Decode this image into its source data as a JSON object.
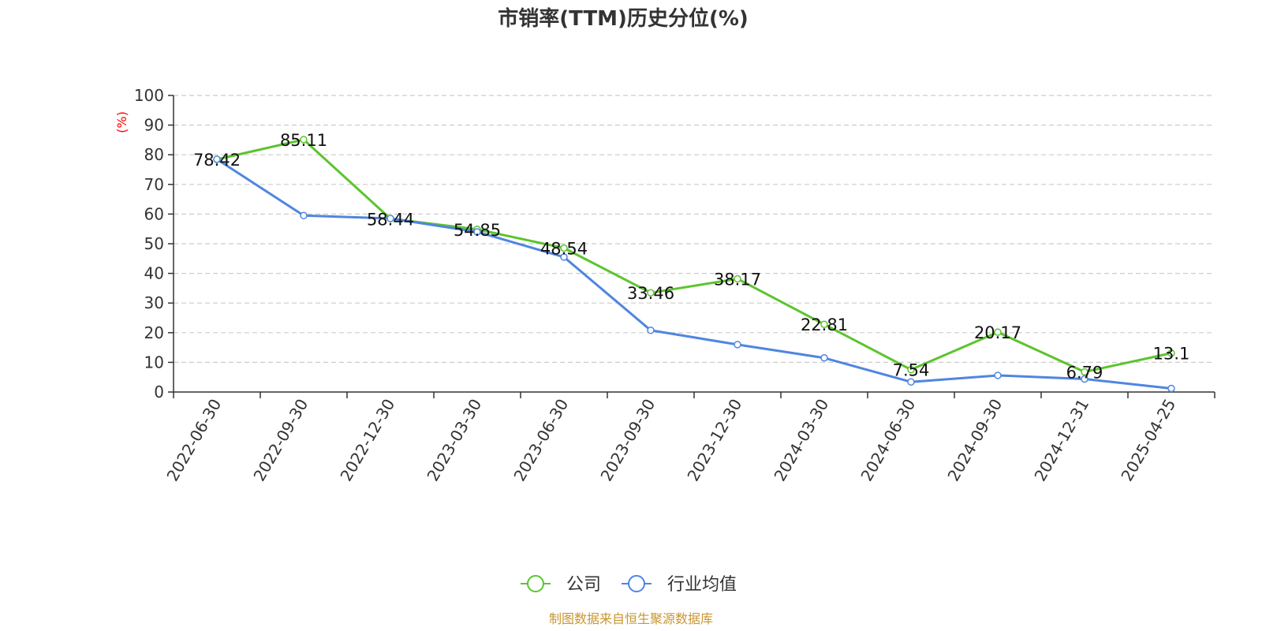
{
  "chart_data": {
    "type": "line",
    "title": "市销率(TTM)历史分位(%)",
    "ylabel": "(%)",
    "xlabel": "",
    "ylim": [
      0,
      100
    ],
    "yticks": [
      0,
      10,
      20,
      30,
      40,
      50,
      60,
      70,
      80,
      90,
      100
    ],
    "grid": "horizontal dashed",
    "legend_position": "bottom-center",
    "categories": [
      "2022-06-30",
      "2022-09-30",
      "2022-12-30",
      "2023-03-30",
      "2023-06-30",
      "2023-09-30",
      "2023-12-30",
      "2024-03-30",
      "2024-06-30",
      "2024-09-30",
      "2024-12-31",
      "2025-04-25"
    ],
    "series": [
      {
        "name": "公司",
        "color": "#5cc42e",
        "values": [
          78.42,
          85.11,
          58.44,
          54.85,
          48.54,
          33.46,
          38.17,
          22.81,
          7.54,
          20.17,
          6.79,
          13.1
        ],
        "labels": [
          "78.42",
          "85.11",
          "58.44",
          "54.85",
          "48.54",
          "33.46",
          "38.17",
          "22.81",
          "7.54",
          "20.17",
          "6.79",
          "13.1"
        ]
      },
      {
        "name": "行业均值",
        "color": "#4f86e0",
        "values": [
          78.5,
          59.5,
          58.5,
          54.0,
          45.5,
          20.8,
          16.0,
          11.5,
          3.4,
          5.6,
          4.4,
          1.2
        ]
      }
    ],
    "source": "制图数据来自恒生聚源数据库"
  }
}
